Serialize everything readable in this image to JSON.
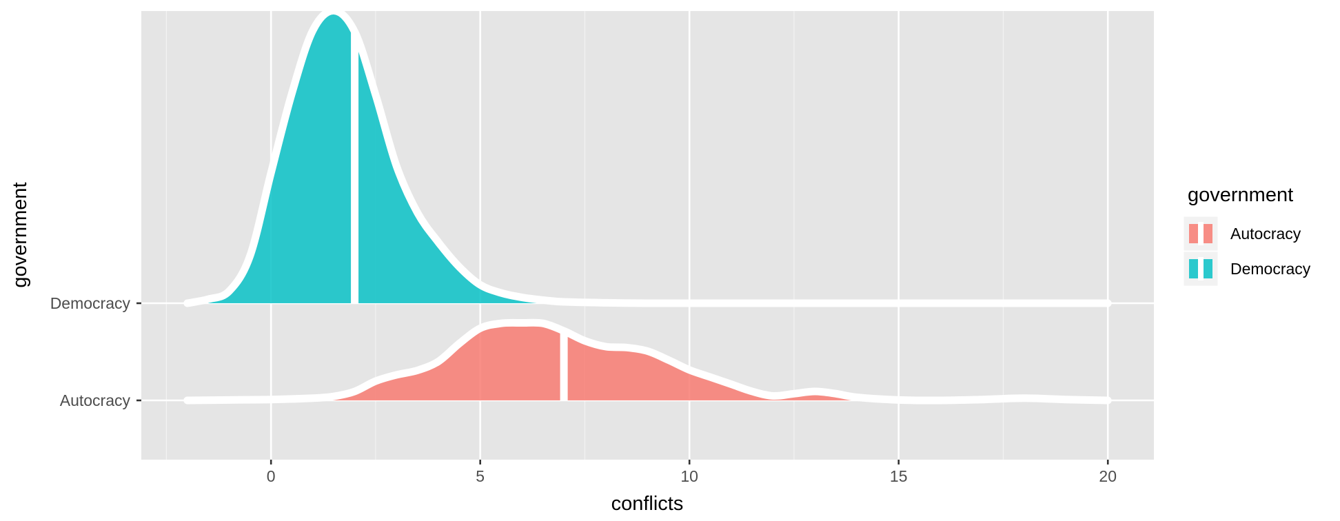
{
  "chart_data": {
    "type": "ridgeline",
    "xlabel": "conflicts",
    "ylabel": "government",
    "xlim": [
      -3.1,
      21.1
    ],
    "x_ticks": [
      0,
      5,
      10,
      15,
      20
    ],
    "x_tick_labels": [
      "0",
      "5",
      "10",
      "15",
      "20"
    ],
    "categories": [
      "Autocracy",
      "Democracy"
    ],
    "grid": true,
    "legend": {
      "title": "government",
      "position": "right",
      "entries": [
        "Autocracy",
        "Democracy"
      ]
    },
    "series": [
      {
        "name": "Autocracy",
        "color": "#F8766D",
        "baseline_category": "Autocracy",
        "median": 7,
        "density_x": [
          -2,
          -1,
          0,
          1,
          1.5,
          2,
          2.5,
          3,
          3.5,
          4,
          4.5,
          5,
          5.5,
          6,
          6.5,
          7,
          7.5,
          8,
          8.5,
          9,
          9.5,
          10,
          10.5,
          11,
          11.5,
          12,
          12.5,
          13,
          13.5,
          14,
          15,
          16,
          17,
          18,
          19,
          20
        ],
        "density_y": [
          0.0,
          0.01,
          0.02,
          0.05,
          0.09,
          0.2,
          0.43,
          0.57,
          0.67,
          0.87,
          1.27,
          1.61,
          1.72,
          1.73,
          1.72,
          1.55,
          1.33,
          1.2,
          1.18,
          1.1,
          0.9,
          0.68,
          0.52,
          0.36,
          0.2,
          0.1,
          0.15,
          0.2,
          0.15,
          0.07,
          0.01,
          0.0,
          0.02,
          0.05,
          0.02,
          0.0
        ]
      },
      {
        "name": "Democracy",
        "color": "#00BFC4",
        "baseline_category": "Democracy",
        "median": 2,
        "density_x": [
          -2,
          -1.5,
          -1,
          -0.5,
          0,
          0.5,
          1,
          1.5,
          2,
          2.5,
          3,
          3.5,
          4,
          4.5,
          5,
          5.5,
          6,
          6.5,
          7,
          8,
          9,
          10,
          12,
          15,
          20
        ],
        "density_y": [
          0.0,
          0.09,
          0.27,
          1.06,
          2.91,
          4.69,
          6.09,
          6.53,
          6.06,
          4.65,
          3.06,
          2.02,
          1.36,
          0.81,
          0.41,
          0.23,
          0.13,
          0.07,
          0.03,
          0.01,
          0.0,
          0.0,
          0.0,
          0.0,
          0.0
        ]
      }
    ]
  }
}
